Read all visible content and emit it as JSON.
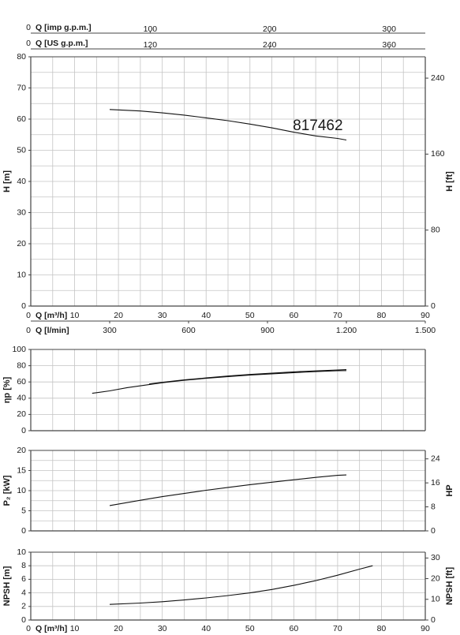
{
  "chart_data": {
    "type": "line",
    "pump_label": "817462",
    "top_axes": [
      {
        "label": "Q [imp g.p.m.]",
        "zero": "0",
        "ticks": [
          {
            "q": 27.25,
            "label": "100"
          },
          {
            "q": 54.5,
            "label": "200"
          },
          {
            "q": 81.75,
            "label": "300"
          }
        ]
      },
      {
        "label": "Q [US g.p.m.]",
        "zero": "0",
        "ticks": [
          {
            "q": 27.25,
            "label": "120"
          },
          {
            "q": 54.5,
            "label": "240"
          },
          {
            "q": 81.75,
            "label": "360"
          }
        ]
      }
    ],
    "x_m3h": {
      "label": "Q [m³/h]",
      "zero": "0",
      "range": [
        0,
        90
      ],
      "ticks": [
        "10",
        "20",
        "30",
        "40",
        "50",
        "60",
        "70",
        "80",
        "90"
      ]
    },
    "x_lmin": {
      "label": "Q [l/min]",
      "zero": "0",
      "ticks": [
        {
          "q": 18,
          "label": "300"
        },
        {
          "q": 36,
          "label": "600"
        },
        {
          "q": 54,
          "label": "900"
        },
        {
          "q": 72,
          "label": "1.200"
        },
        {
          "q": 90,
          "label": "1.500"
        }
      ]
    },
    "head_panel": {
      "ylabel": "H [m]",
      "ylim": [
        0,
        80
      ],
      "yticks": [
        "0",
        "10",
        "20",
        "30",
        "40",
        "50",
        "60",
        "70",
        "80"
      ],
      "ylabel_right": "H [ft]",
      "right_ticks": [
        {
          "v": 0,
          "label": "0"
        },
        {
          "v": 24.38,
          "label": "80"
        },
        {
          "v": 48.77,
          "label": "160"
        },
        {
          "v": 73.15,
          "label": "240"
        }
      ],
      "series": [
        {
          "x": [
            18,
            25,
            30,
            35,
            40,
            45,
            50,
            55,
            60,
            65,
            70,
            72
          ],
          "y": [
            63.1,
            62.6,
            62.0,
            61.3,
            60.4,
            59.5,
            58.4,
            57.2,
            55.8,
            54.6,
            53.8,
            53.3
          ]
        }
      ]
    },
    "eff_panel": {
      "ylabel": "ηp [%]",
      "ylim": [
        0,
        100
      ],
      "yticks": [
        "0",
        "20",
        "40",
        "60",
        "80",
        "100"
      ],
      "series": [
        {
          "x": [
            14,
            18,
            22,
            26,
            30,
            35,
            40,
            45,
            50,
            55,
            60,
            65,
            70,
            72
          ],
          "y": [
            46,
            49,
            53,
            56,
            59,
            62,
            64.5,
            66.5,
            68.5,
            70,
            71.5,
            72.7,
            73.8,
            74
          ]
        },
        {
          "x": [
            27,
            30,
            35,
            40,
            45,
            50,
            55,
            60,
            65,
            70,
            72
          ],
          "y": [
            57.5,
            59.5,
            62.5,
            65,
            67.3,
            69.2,
            70.8,
            72.4,
            73.6,
            74.7,
            75.2
          ]
        }
      ]
    },
    "power_panel": {
      "ylabel": "P₂ [kW]",
      "ylim": [
        0,
        20
      ],
      "yticks": [
        "0",
        "5",
        "10",
        "15",
        "20"
      ],
      "ylabel_right": "HP",
      "right_ticks": [
        {
          "v": 0,
          "label": "0"
        },
        {
          "v": 5.97,
          "label": "8"
        },
        {
          "v": 11.93,
          "label": "16"
        },
        {
          "v": 17.9,
          "label": "24"
        }
      ],
      "series": [
        {
          "x": [
            18,
            25,
            30,
            35,
            40,
            45,
            50,
            55,
            60,
            65,
            70,
            72
          ],
          "y": [
            6.3,
            7.6,
            8.5,
            9.3,
            10.1,
            10.8,
            11.5,
            12.1,
            12.7,
            13.3,
            13.8,
            13.9
          ]
        }
      ]
    },
    "npsh_panel": {
      "ylabel": "NPSH [m]",
      "ylim": [
        0,
        10
      ],
      "yticks": [
        "0",
        "2",
        "4",
        "6",
        "8",
        "10"
      ],
      "ylabel_right": "NPSH [ft]",
      "right_ticks": [
        {
          "v": 0,
          "label": "0"
        },
        {
          "v": 3.05,
          "label": "10"
        },
        {
          "v": 6.1,
          "label": "20"
        },
        {
          "v": 9.14,
          "label": "30"
        }
      ],
      "series": [
        {
          "x": [
            18,
            25,
            30,
            35,
            40,
            45,
            50,
            55,
            60,
            65,
            70,
            75,
            78
          ],
          "y": [
            2.3,
            2.5,
            2.7,
            2.95,
            3.25,
            3.6,
            4.0,
            4.5,
            5.1,
            5.8,
            6.6,
            7.5,
            8.0
          ]
        }
      ]
    }
  }
}
